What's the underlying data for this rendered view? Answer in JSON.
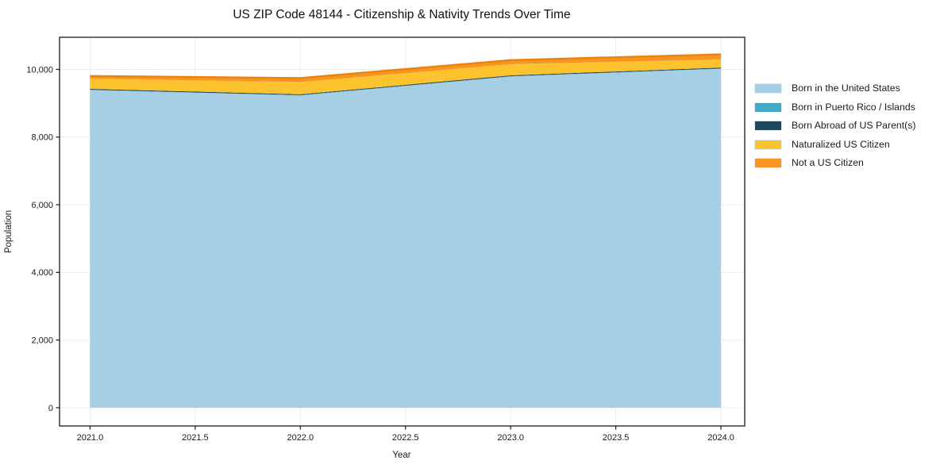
{
  "page": {
    "background_color": "#ffffff"
  },
  "chart_data": {
    "type": "area",
    "stacked": true,
    "title": "US ZIP Code 48144 - Citizenship & Nativity Trends Over Time",
    "xlabel": "Year",
    "ylabel": "Population",
    "x": [
      2021,
      2022,
      2023,
      2024
    ],
    "series": [
      {
        "id": "born-us",
        "name": "Born in the United States",
        "color": "#a6cfe5",
        "values": [
          9390,
          9230,
          9790,
          10020
        ]
      },
      {
        "id": "puerto-rico-islands",
        "name": "Born in Puerto Rico / Islands",
        "color": "#44a7c4",
        "values": [
          10,
          10,
          10,
          10
        ]
      },
      {
        "id": "born-abroad",
        "name": "Born Abroad of US Parent(s)",
        "color": "#20485c",
        "values": [
          25,
          25,
          25,
          25
        ]
      },
      {
        "id": "naturalized",
        "name": "Naturalized US Citizen",
        "color": "#fdc32f",
        "values": [
          300,
          360,
          330,
          240
        ]
      },
      {
        "id": "not-citizen",
        "name": "Not a US Citizen",
        "color": "#f79522",
        "values": [
          80,
          120,
          120,
          150
        ]
      }
    ],
    "xticks": [
      {
        "v": 2021.0,
        "label": "2021.0"
      },
      {
        "v": 2021.5,
        "label": "2021.5"
      },
      {
        "v": 2022.0,
        "label": "2022.0"
      },
      {
        "v": 2022.5,
        "label": "2022.5"
      },
      {
        "v": 2023.0,
        "label": "2023.0"
      },
      {
        "v": 2023.5,
        "label": "2023.5"
      },
      {
        "v": 2024.0,
        "label": "2024.0"
      }
    ],
    "yticks": [
      {
        "v": 0,
        "label": "0"
      },
      {
        "v": 2000,
        "label": "2,000"
      },
      {
        "v": 4000,
        "label": "4,000"
      },
      {
        "v": 6000,
        "label": "6,000"
      },
      {
        "v": 8000,
        "label": "8,000"
      },
      {
        "v": 10000,
        "label": "10,000"
      }
    ],
    "xlim": [
      2020.855,
      2024.113
    ],
    "ylim": [
      -540,
      10950
    ],
    "grid": true,
    "legend": {
      "position": "right-top"
    },
    "style": {
      "grid_color": "#ebebeb",
      "frame_color": "#1a1a1a",
      "text_color": "#1a1a1a",
      "top_edge_color": "#ec820c"
    }
  }
}
